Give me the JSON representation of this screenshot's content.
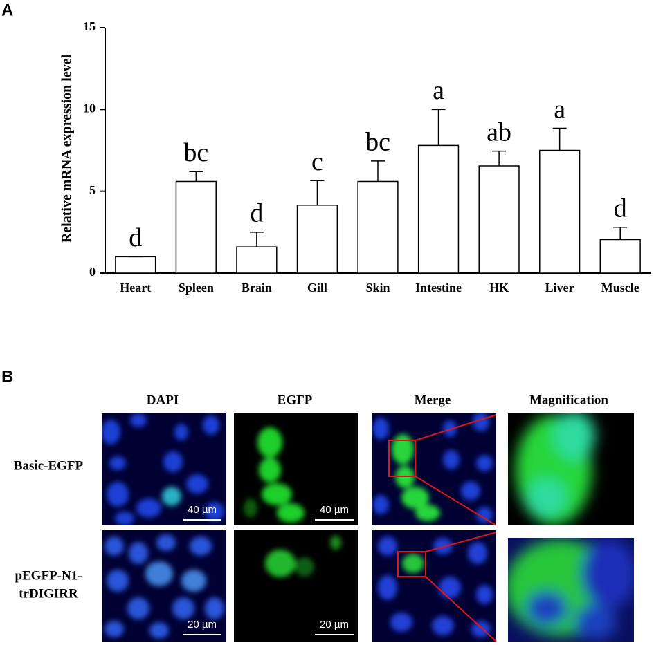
{
  "panel_labels": [
    "A",
    "B"
  ],
  "chart_data": {
    "type": "bar",
    "ylabel": "Relative mRNA expression level",
    "categories": [
      "Heart",
      "Spleen",
      "Brain",
      "Gill",
      "Skin",
      "Intestine",
      "HK",
      "Liver",
      "Muscle"
    ],
    "values": [
      1.0,
      5.6,
      1.6,
      4.15,
      5.6,
      7.8,
      6.55,
      7.5,
      2.05
    ],
    "errors": [
      0,
      0.6,
      0.9,
      1.5,
      1.25,
      2.2,
      0.9,
      1.35,
      0.75
    ],
    "annotations": [
      "d",
      "bc",
      "d",
      "c",
      "bc",
      "a",
      "ab",
      "a",
      "d"
    ],
    "color": "#ffffff",
    "ylim": [
      0,
      15
    ],
    "yticks": [
      0,
      5,
      10,
      15
    ],
    "grid": false
  },
  "panel_b": {
    "columns": [
      "DAPI",
      "EGFP",
      "Merge",
      "Magnification"
    ],
    "rows": [
      [
        "Basic-EGFP"
      ],
      [
        "pEGFP-N1-",
        "trDIGIRR"
      ]
    ],
    "scale_bars": [
      [
        "40 µm",
        "40 µm"
      ],
      [
        "20 µm",
        "20 µm"
      ]
    ]
  }
}
